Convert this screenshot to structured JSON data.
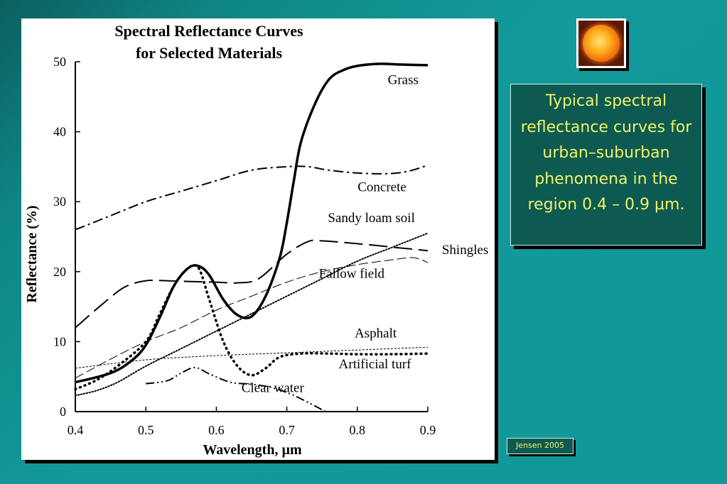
{
  "caption": "Typical spectral reflectance curves for urban–suburban phenomena in the region 0.4 – 0.9 µm.",
  "credit": "Jensen 2005",
  "sun_image": "sun-icon",
  "chart_data": {
    "type": "line",
    "title": "Spectral Reflectance Curves",
    "subtitle": "for Selected Materials",
    "xlabel": "Wavelength, µm",
    "ylabel": "Reflectance (%)",
    "xlim": [
      0.4,
      0.9
    ],
    "ylim": [
      0,
      50
    ],
    "xticks": [
      "0.4",
      "0.5",
      "0.6",
      "0.7",
      "0.8",
      "0.9"
    ],
    "yticks": [
      "0",
      "10",
      "20",
      "30",
      "40",
      "50"
    ],
    "grid": false,
    "legend": "none",
    "series": [
      {
        "name": "Grass",
        "style": "solid-thick",
        "x": [
          0.4,
          0.45,
          0.48,
          0.5,
          0.52,
          0.54,
          0.56,
          0.575,
          0.59,
          0.61,
          0.63,
          0.65,
          0.67,
          0.69,
          0.7,
          0.71,
          0.72,
          0.74,
          0.76,
          0.78,
          0.8,
          0.83,
          0.86,
          0.9
        ],
        "y": [
          4.2,
          5.5,
          7.3,
          9.5,
          13.5,
          18,
          20.5,
          20.8,
          19.5,
          16,
          13.8,
          13.6,
          16.5,
          22,
          27,
          33,
          38.5,
          44,
          47.5,
          48.8,
          49.4,
          49.7,
          49.6,
          49.5
        ]
      },
      {
        "name": "Concrete",
        "style": "dash-dot",
        "x": [
          0.4,
          0.45,
          0.5,
          0.55,
          0.6,
          0.65,
          0.7,
          0.73,
          0.76,
          0.8,
          0.84,
          0.87,
          0.9
        ],
        "y": [
          26,
          28,
          30,
          31.5,
          33,
          34.5,
          35,
          35,
          34.5,
          34.1,
          34,
          34.3,
          35.2
        ]
      },
      {
        "name": "Sandy loam soil",
        "style": "dotted",
        "x": [
          0.4,
          0.43,
          0.46,
          0.5,
          0.55,
          0.6,
          0.65,
          0.7,
          0.75,
          0.8,
          0.85,
          0.9
        ],
        "y": [
          2.3,
          3,
          4.2,
          6.5,
          9,
          11.5,
          14,
          16.5,
          19,
          21.5,
          23.5,
          25.5
        ]
      },
      {
        "name": "Shingles",
        "style": "long-dash",
        "x": [
          0.4,
          0.44,
          0.47,
          0.5,
          0.53,
          0.56,
          0.6,
          0.63,
          0.66,
          0.7,
          0.73,
          0.75,
          0.8,
          0.85,
          0.9
        ],
        "y": [
          12,
          15.5,
          17.8,
          18.7,
          18.7,
          18.6,
          18.5,
          18.4,
          19,
          22.5,
          24.3,
          24.4,
          24,
          23.5,
          23
        ]
      },
      {
        "name": "Fallow field",
        "style": "dashed-thin",
        "x": [
          0.4,
          0.45,
          0.5,
          0.55,
          0.6,
          0.65,
          0.7,
          0.75,
          0.8,
          0.85,
          0.88,
          0.9
        ],
        "y": [
          4.8,
          7.5,
          10,
          12,
          14.5,
          16.5,
          18.5,
          20,
          21,
          21.7,
          22,
          21.3
        ]
      },
      {
        "name": "Asphalt",
        "style": "fine-dash",
        "x": [
          0.4,
          0.5,
          0.6,
          0.7,
          0.8,
          0.9
        ],
        "y": [
          6.2,
          7.4,
          8.0,
          8.4,
          8.8,
          9.2
        ]
      },
      {
        "name": "Artificial turf",
        "style": "heavy-dot",
        "x": [
          0.4,
          0.43,
          0.46,
          0.5,
          0.52,
          0.54,
          0.56,
          0.575,
          0.59,
          0.61,
          0.63,
          0.65,
          0.67,
          0.69,
          0.72,
          0.76,
          0.8,
          0.85,
          0.9
        ],
        "y": [
          3.2,
          4.5,
          6.5,
          10,
          14,
          18,
          20.5,
          20.5,
          16,
          10,
          6.5,
          5.2,
          6.2,
          7.8,
          8.3,
          8.3,
          8.2,
          8.2,
          8.3
        ]
      },
      {
        "name": "Clear water",
        "style": "dash-dot-dot",
        "x": [
          0.5,
          0.53,
          0.55,
          0.57,
          0.59,
          0.62,
          0.65,
          0.68,
          0.71,
          0.74,
          0.755
        ],
        "y": [
          4.0,
          4.4,
          5.5,
          6.3,
          5.4,
          4.2,
          3.9,
          3.4,
          2.3,
          0.8,
          0
        ]
      }
    ],
    "annotations": [
      {
        "text": "Grass",
        "x": 0.865,
        "y": 46.8
      },
      {
        "text": "Concrete",
        "x": 0.835,
        "y": 31.5
      },
      {
        "text": "Sandy loam soil",
        "x": 0.82,
        "y": 27.1
      },
      {
        "text": "Shingles",
        "x": 0.953,
        "y": 22.5
      },
      {
        "text": "Fallow field",
        "x": 0.792,
        "y": 19.1
      },
      {
        "text": "Asphalt",
        "x": 0.826,
        "y": 10.6
      },
      {
        "text": "Artificial turf",
        "x": 0.825,
        "y": 6.2
      },
      {
        "text": "Clear water",
        "x": 0.68,
        "y": 2.8
      }
    ]
  }
}
